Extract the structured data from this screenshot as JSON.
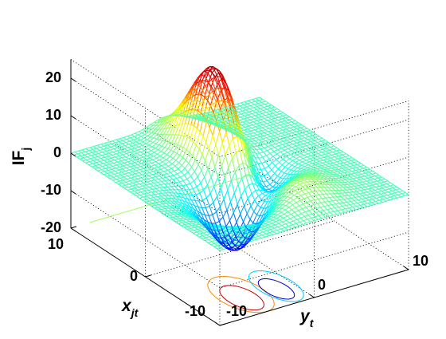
{
  "chart_data": {
    "type": "surface",
    "title": "",
    "xlabel": {
      "main": "x",
      "sub": "jt"
    },
    "ylabel": {
      "main": "y",
      "sub": "t"
    },
    "zlabel": {
      "main": "IF",
      "sub": "j"
    },
    "xlim": [
      -10,
      10
    ],
    "ylim": [
      -10,
      10
    ],
    "zlim": [
      -20,
      25
    ],
    "z_ticks": [
      "20",
      "10",
      "0",
      "-10",
      "-20"
    ],
    "x_ticks": [
      "10",
      "0",
      "-10"
    ],
    "y_ticks": [
      "-10",
      "0",
      "10"
    ],
    "grid": true,
    "colormap": "jet",
    "plane_value": 0,
    "features": [
      {
        "name": "peak",
        "x": 3,
        "y": 0,
        "z": 25
      },
      {
        "name": "trough",
        "x": -3,
        "y": -2,
        "z": -20
      },
      {
        "name": "ridge",
        "x": -5,
        "y": 0,
        "z": 9
      },
      {
        "name": "valley",
        "x": 0,
        "y": 2,
        "z": -8
      }
    ],
    "contour_projection": true,
    "colors": {
      "flat": "#9bff5e",
      "high": "#8b0000",
      "low": "#00008b"
    }
  }
}
